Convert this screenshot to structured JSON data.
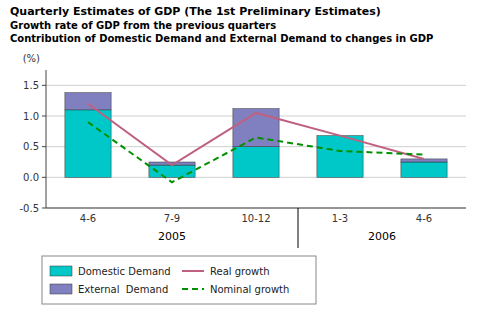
{
  "chart_data": {
    "type": "bar",
    "stacked": true,
    "title": "Quarterly Estimates of GDP (The 1st Preliminary Estimates)",
    "subtitle": [
      "Growth rate of GDP from the previous quarters",
      "Contribution of Domestic Demand and External Demand to changes in GDP"
    ],
    "y_label": "(%)",
    "categories": [
      "4-6",
      "7-9",
      "10-12",
      "1-3",
      "4-6"
    ],
    "series": [
      {
        "name": "Domestic Demand",
        "type": "bar",
        "color": "#00C8C8",
        "values": [
          1.1,
          0.2,
          0.5,
          0.68,
          0.25
        ]
      },
      {
        "name": "External  Demand",
        "type": "bar",
        "color": "#8080C0",
        "values": [
          0.28,
          0.05,
          0.62,
          0.0,
          0.05
        ]
      },
      {
        "name": "Real growth",
        "type": "line",
        "line_style": "solid",
        "color": "#C06080",
        "values": [
          1.2,
          0.2,
          1.05,
          0.68,
          0.3
        ]
      },
      {
        "name": "Nominal growth",
        "type": "line",
        "line_style": "dashed",
        "color": "#009000",
        "values": [
          0.9,
          -0.08,
          0.65,
          0.43,
          0.37
        ]
      }
    ],
    "ylim": [
      -0.5,
      1.75
    ],
    "yticks": [
      -0.5,
      {
        "value": 0,
        "label": "0.0"
      },
      0.5,
      {
        "value": 1,
        "label": "1.0"
      },
      1.5
    ],
    "grid": true,
    "legend": "bottom",
    "annotations": [
      {
        "text": "2005",
        "x": 1.0
      },
      {
        "text": "2006",
        "x": 3.5
      }
    ],
    "dividers": [
      2.5
    ],
    "color": "#FFFFFF"
  }
}
